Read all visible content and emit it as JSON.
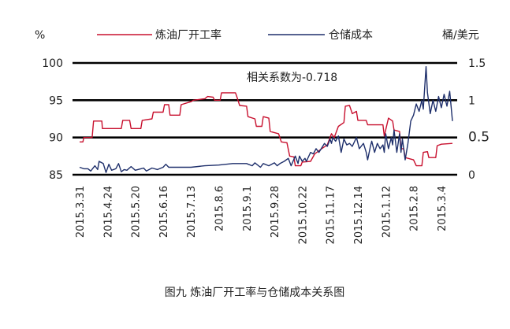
{
  "chart_data": {
    "type": "line",
    "caption": "图九  炼油厂开工率与仓储成本关系图",
    "annotation": "相关系数为-0.718",
    "left_axis": {
      "unit": "%",
      "range": [
        85,
        100
      ],
      "ticks": [
        85,
        90,
        95,
        100
      ]
    },
    "right_axis": {
      "unit": "桶/美元",
      "range": [
        0,
        1.5
      ],
      "ticks": [
        0,
        0.5,
        1,
        1.5
      ],
      "tick_labels": [
        "0",
        "0.5",
        "1",
        "1.5"
      ]
    },
    "grid": "horizontal lines at 85, 90, 95, 100",
    "legend_position": "top",
    "x_categories": [
      "2015.3.31",
      "2015.4.24",
      "2015.5.20",
      "2015.6.16",
      "2015.7.13",
      "2015.8.6",
      "2015.9.1",
      "2015.9.28",
      "2015.10.22",
      "2015.11.17",
      "2015.12.14",
      "2015.1.12",
      "2015.2.8",
      "2015.3.4"
    ],
    "series": [
      {
        "name": "炼油厂开工率",
        "axis": "left",
        "color": "#c8102e",
        "points": [
          [
            0,
            89.4
          ],
          [
            0.12,
            89.4
          ],
          [
            0.15,
            90.0
          ],
          [
            0.45,
            90.0
          ],
          [
            0.5,
            92.2
          ],
          [
            0.8,
            92.2
          ],
          [
            0.82,
            91.2
          ],
          [
            1.5,
            91.2
          ],
          [
            1.55,
            92.3
          ],
          [
            1.8,
            92.3
          ],
          [
            1.85,
            91.2
          ],
          [
            2.2,
            91.2
          ],
          [
            2.25,
            92.3
          ],
          [
            2.6,
            92.5
          ],
          [
            2.65,
            93.4
          ],
          [
            3.0,
            93.4
          ],
          [
            3.05,
            94.4
          ],
          [
            3.2,
            94.4
          ],
          [
            3.25,
            93.0
          ],
          [
            3.6,
            93.0
          ],
          [
            3.65,
            94.4
          ],
          [
            4.0,
            94.8
          ],
          [
            4.1,
            95.0
          ],
          [
            4.5,
            95.2
          ],
          [
            4.6,
            95.5
          ],
          [
            4.8,
            95.4
          ],
          [
            4.85,
            95.0
          ],
          [
            5.05,
            95.0
          ],
          [
            5.1,
            96.0
          ],
          [
            5.6,
            96.0
          ],
          [
            5.65,
            95.5
          ],
          [
            5.75,
            94.3
          ],
          [
            6.0,
            94.2
          ],
          [
            6.05,
            92.8
          ],
          [
            6.3,
            92.5
          ],
          [
            6.35,
            91.5
          ],
          [
            6.55,
            91.5
          ],
          [
            6.6,
            92.8
          ],
          [
            6.8,
            92.6
          ],
          [
            6.85,
            90.8
          ],
          [
            7.15,
            90.5
          ],
          [
            7.25,
            89.4
          ],
          [
            7.45,
            89.3
          ],
          [
            7.55,
            87.5
          ],
          [
            7.7,
            87.4
          ],
          [
            7.75,
            86.2
          ],
          [
            7.95,
            86.2
          ],
          [
            8.0,
            86.7
          ],
          [
            8.3,
            86.8
          ],
          [
            8.45,
            87.8
          ],
          [
            8.7,
            88.5
          ],
          [
            8.9,
            89.0
          ],
          [
            9.05,
            90.5
          ],
          [
            9.15,
            90.0
          ],
          [
            9.3,
            91.5
          ],
          [
            9.5,
            92.0
          ],
          [
            9.55,
            94.2
          ],
          [
            9.7,
            94.3
          ],
          [
            9.8,
            93.2
          ],
          [
            9.95,
            93.5
          ],
          [
            10.0,
            92.3
          ],
          [
            10.3,
            92.3
          ],
          [
            10.35,
            91.7
          ],
          [
            10.9,
            91.7
          ],
          [
            10.95,
            90.2
          ],
          [
            11.1,
            92.6
          ],
          [
            11.25,
            92.2
          ],
          [
            11.3,
            91.0
          ],
          [
            11.5,
            90.8
          ],
          [
            11.55,
            88.5
          ],
          [
            11.65,
            88.5
          ],
          [
            11.7,
            87.3
          ],
          [
            12.0,
            87.0
          ],
          [
            12.1,
            86.2
          ],
          [
            12.3,
            86.2
          ],
          [
            12.35,
            88.0
          ],
          [
            12.5,
            88.1
          ],
          [
            12.55,
            87.3
          ],
          [
            12.8,
            87.3
          ],
          [
            12.85,
            88.9
          ],
          [
            13.0,
            89.1
          ],
          [
            13.4,
            89.2
          ]
        ]
      },
      {
        "name": "仓储成本",
        "axis": "right",
        "color": "#1e2f6b",
        "points": [
          [
            0,
            0.1
          ],
          [
            0.15,
            0.08
          ],
          [
            0.3,
            0.08
          ],
          [
            0.4,
            0.05
          ],
          [
            0.55,
            0.12
          ],
          [
            0.65,
            0.07
          ],
          [
            0.7,
            0.18
          ],
          [
            0.85,
            0.15
          ],
          [
            0.95,
            0.03
          ],
          [
            1.05,
            0.14
          ],
          [
            1.15,
            0.06
          ],
          [
            1.3,
            0.08
          ],
          [
            1.4,
            0.15
          ],
          [
            1.5,
            0.04
          ],
          [
            1.6,
            0.07
          ],
          [
            1.7,
            0.06
          ],
          [
            1.85,
            0.11
          ],
          [
            2.0,
            0.06
          ],
          [
            2.2,
            0.08
          ],
          [
            2.3,
            0.09
          ],
          [
            2.4,
            0.05
          ],
          [
            2.6,
            0.09
          ],
          [
            2.8,
            0.07
          ],
          [
            3.0,
            0.1
          ],
          [
            3.1,
            0.14
          ],
          [
            3.2,
            0.1
          ],
          [
            3.5,
            0.1
          ],
          [
            4.0,
            0.1
          ],
          [
            4.5,
            0.12
          ],
          [
            5.0,
            0.13
          ],
          [
            5.5,
            0.15
          ],
          [
            6.0,
            0.15
          ],
          [
            6.2,
            0.12
          ],
          [
            6.3,
            0.16
          ],
          [
            6.5,
            0.1
          ],
          [
            6.6,
            0.15
          ],
          [
            6.8,
            0.12
          ],
          [
            7.0,
            0.16
          ],
          [
            7.1,
            0.12
          ],
          [
            7.2,
            0.15
          ],
          [
            7.35,
            0.18
          ],
          [
            7.5,
            0.22
          ],
          [
            7.6,
            0.12
          ],
          [
            7.75,
            0.25
          ],
          [
            7.85,
            0.15
          ],
          [
            7.9,
            0.25
          ],
          [
            8.0,
            0.18
          ],
          [
            8.1,
            0.22
          ],
          [
            8.15,
            0.18
          ],
          [
            8.3,
            0.3
          ],
          [
            8.4,
            0.28
          ],
          [
            8.5,
            0.35
          ],
          [
            8.6,
            0.3
          ],
          [
            8.8,
            0.42
          ],
          [
            8.9,
            0.38
          ],
          [
            9.0,
            0.48
          ],
          [
            9.05,
            0.42
          ],
          [
            9.1,
            0.5
          ],
          [
            9.2,
            0.45
          ],
          [
            9.3,
            0.52
          ],
          [
            9.4,
            0.3
          ],
          [
            9.5,
            0.48
          ],
          [
            9.6,
            0.4
          ],
          [
            9.7,
            0.42
          ],
          [
            9.8,
            0.38
          ],
          [
            9.95,
            0.5
          ],
          [
            10.05,
            0.35
          ],
          [
            10.2,
            0.42
          ],
          [
            10.3,
            0.3
          ],
          [
            10.35,
            0.2
          ],
          [
            10.45,
            0.38
          ],
          [
            10.5,
            0.45
          ],
          [
            10.6,
            0.3
          ],
          [
            10.7,
            0.42
          ],
          [
            10.8,
            0.35
          ],
          [
            10.9,
            0.4
          ],
          [
            10.95,
            0.3
          ],
          [
            11.0,
            0.55
          ],
          [
            11.1,
            0.35
          ],
          [
            11.2,
            0.5
          ],
          [
            11.25,
            0.4
          ],
          [
            11.3,
            0.6
          ],
          [
            11.4,
            0.3
          ],
          [
            11.5,
            0.55
          ],
          [
            11.55,
            0.3
          ],
          [
            11.6,
            0.48
          ],
          [
            11.7,
            0.2
          ],
          [
            11.8,
            0.42
          ],
          [
            11.9,
            0.72
          ],
          [
            12.0,
            0.8
          ],
          [
            12.1,
            0.95
          ],
          [
            12.2,
            0.85
          ],
          [
            12.3,
            1.0
          ],
          [
            12.35,
            0.88
          ],
          [
            12.45,
            1.45
          ],
          [
            12.5,
            1.1
          ],
          [
            12.6,
            0.82
          ],
          [
            12.7,
            1.0
          ],
          [
            12.8,
            0.85
          ],
          [
            12.9,
            1.05
          ],
          [
            13.0,
            0.9
          ],
          [
            13.1,
            1.08
          ],
          [
            13.2,
            0.92
          ],
          [
            13.3,
            1.12
          ],
          [
            13.4,
            0.72
          ]
        ]
      }
    ]
  }
}
